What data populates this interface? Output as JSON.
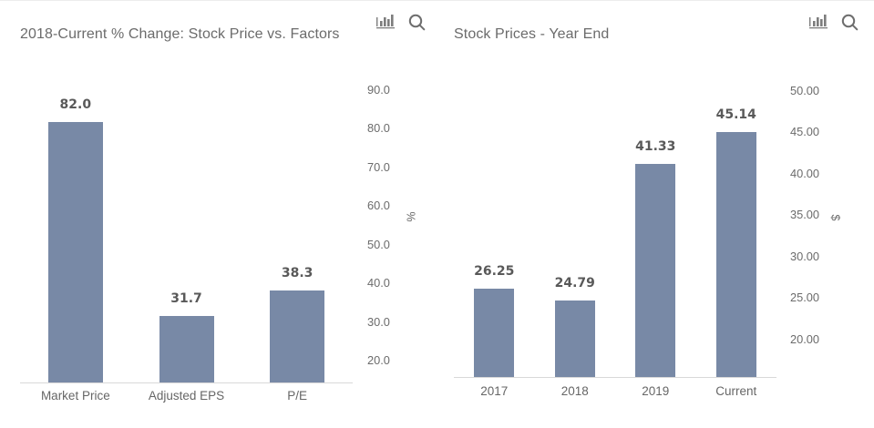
{
  "page": {
    "background": "#ffffff"
  },
  "toolbar": {
    "chart_type_icon": "bar-chart",
    "search_icon": "magnifier",
    "icon_color": "#7d7d7d"
  },
  "chart_data": [
    {
      "type": "bar",
      "title": "2018-Current % Change: Stock Price vs. Factors",
      "categories": [
        "Market Price",
        "Adjusted EPS",
        "P/E"
      ],
      "values": [
        82.0,
        31.7,
        38.3
      ],
      "value_labels": [
        "82.0",
        "31.7",
        "38.3"
      ],
      "ylabel": "%",
      "ytick_values": [
        90,
        80,
        70,
        60,
        50,
        40,
        30,
        20
      ],
      "ytick_labels": [
        "90.0",
        "80.0",
        "70.0",
        "60.0",
        "50.0",
        "40.0",
        "30.0",
        "20.0"
      ],
      "ylim": [
        14.6,
        92.6
      ],
      "bar_color": "#7889a6",
      "grid": false,
      "legend": "none"
    },
    {
      "type": "bar",
      "title": "Stock Prices - Year End",
      "categories": [
        "2017",
        "2018",
        "2019",
        "Current"
      ],
      "values": [
        26.25,
        24.79,
        41.33,
        45.14
      ],
      "value_labels": [
        "26.25",
        "24.79",
        "41.33",
        "45.14"
      ],
      "ylabel": "$",
      "ytick_values": [
        50,
        45,
        40,
        35,
        30,
        25,
        20
      ],
      "ytick_labels": [
        "50.00",
        "45.00",
        "40.00",
        "35.00",
        "30.00",
        "25.00",
        "20.00"
      ],
      "ylim": [
        15.6,
        51.3
      ],
      "bar_color": "#7889a6",
      "grid": false,
      "legend": "none"
    }
  ]
}
